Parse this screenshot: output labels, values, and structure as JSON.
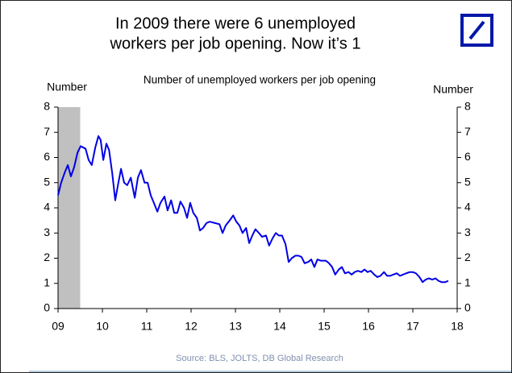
{
  "chart_data": {
    "type": "line",
    "title": [
      "In 2009 there were 6 unemployed",
      "workers per job opening. Now it’s 1"
    ],
    "subtitle": "Number of unemployed workers per job opening",
    "y_label": "Number",
    "y2_label": "Number",
    "source": "Source: BLS, JOLTS, DB Global Research",
    "xlim": [
      2009,
      2018
    ],
    "xticks": [
      {
        "value": 2009,
        "label": "09"
      },
      {
        "value": 2010,
        "label": "10"
      },
      {
        "value": 2011,
        "label": "11"
      },
      {
        "value": 2012,
        "label": "12"
      },
      {
        "value": 2013,
        "label": "13"
      },
      {
        "value": 2014,
        "label": "14"
      },
      {
        "value": 2015,
        "label": "15"
      },
      {
        "value": 2016,
        "label": "16"
      },
      {
        "value": 2017,
        "label": "17"
      },
      {
        "value": 2018,
        "label": "18"
      }
    ],
    "ylim": [
      0,
      8
    ],
    "yticks": [
      0,
      1,
      2,
      3,
      4,
      5,
      6,
      7,
      8
    ],
    "y2lim": [
      0,
      8
    ],
    "y2ticks": [
      0,
      1,
      2,
      3,
      4,
      5,
      6,
      7,
      8
    ],
    "recession": [
      2009,
      2009.5
    ],
    "recession_color": "#c0c0c0",
    "series": [
      {
        "color": "#0000e6",
        "x": [
          2009,
          2009.07,
          2009.15,
          2009.22,
          2009.29,
          2009.36,
          2009.44,
          2009.51,
          2009.62,
          2009.69,
          2009.76,
          2009.84,
          2009.91,
          2009.96,
          2010.02,
          2010.09,
          2010.15,
          2010.22,
          2010.29,
          2010.35,
          2010.42,
          2010.49,
          2010.56,
          2010.64,
          2010.73,
          2010.8,
          2010.87,
          2010.95,
          2011.02,
          2011.09,
          2011.16,
          2011.24,
          2011.31,
          2011.4,
          2011.47,
          2011.55,
          2011.62,
          2011.69,
          2011.76,
          2011.84,
          2011.91,
          2011.98,
          2012.05,
          2012.13,
          2012.2,
          2012.27,
          2012.35,
          2012.42,
          2012.53,
          2012.64,
          2012.71,
          2012.78,
          2012.87,
          2012.95,
          2013.02,
          2013.09,
          2013.16,
          2013.24,
          2013.31,
          2013.38,
          2013.45,
          2013.53,
          2013.6,
          2013.69,
          2013.76,
          2013.84,
          2013.91,
          2013.98,
          2014.05,
          2014.13,
          2014.2,
          2014.27,
          2014.35,
          2014.42,
          2014.49,
          2014.56,
          2014.64,
          2014.71,
          2014.78,
          2014.85,
          2014.93,
          2015.04,
          2015.11,
          2015.18,
          2015.25,
          2015.33,
          2015.4,
          2015.47,
          2015.55,
          2015.62,
          2015.69,
          2015.76,
          2015.84,
          2015.91,
          2015.98,
          2016.05,
          2016.13,
          2016.2,
          2016.27,
          2016.35,
          2016.42,
          2016.49,
          2016.56,
          2016.64,
          2016.71,
          2016.78,
          2016.85,
          2016.93,
          2017,
          2017.07,
          2017.15,
          2017.22,
          2017.29,
          2017.36,
          2017.44,
          2017.51,
          2017.58,
          2017.65,
          2017.73,
          2017.8
        ],
        "values": [
          4.5,
          5.0,
          5.4,
          5.7,
          5.25,
          5.6,
          6.2,
          6.45,
          6.35,
          5.9,
          5.7,
          6.4,
          6.85,
          6.7,
          5.9,
          6.55,
          6.3,
          5.4,
          4.3,
          4.9,
          5.55,
          5.0,
          4.9,
          5.2,
          4.4,
          5.2,
          5.5,
          5.0,
          5.0,
          4.5,
          4.2,
          3.85,
          4.2,
          4.45,
          3.9,
          4.3,
          3.8,
          3.8,
          4.25,
          4.0,
          3.6,
          4.2,
          3.8,
          3.6,
          3.1,
          3.2,
          3.4,
          3.45,
          3.4,
          3.35,
          3.0,
          3.3,
          3.5,
          3.7,
          3.45,
          3.3,
          3.0,
          3.2,
          2.6,
          2.9,
          3.15,
          3.0,
          2.85,
          2.9,
          2.5,
          2.8,
          3.0,
          2.9,
          2.9,
          2.55,
          1.85,
          2.0,
          2.1,
          2.1,
          2.05,
          1.8,
          1.85,
          1.95,
          1.65,
          1.95,
          1.9,
          1.9,
          1.8,
          1.65,
          1.35,
          1.55,
          1.65,
          1.4,
          1.45,
          1.35,
          1.45,
          1.5,
          1.45,
          1.55,
          1.45,
          1.5,
          1.35,
          1.25,
          1.3,
          1.45,
          1.3,
          1.3,
          1.35,
          1.4,
          1.3,
          1.35,
          1.4,
          1.45,
          1.45,
          1.4,
          1.25,
          1.05,
          1.15,
          1.2,
          1.15,
          1.2,
          1.1,
          1.05,
          1.05,
          1.1
        ]
      }
    ]
  }
}
